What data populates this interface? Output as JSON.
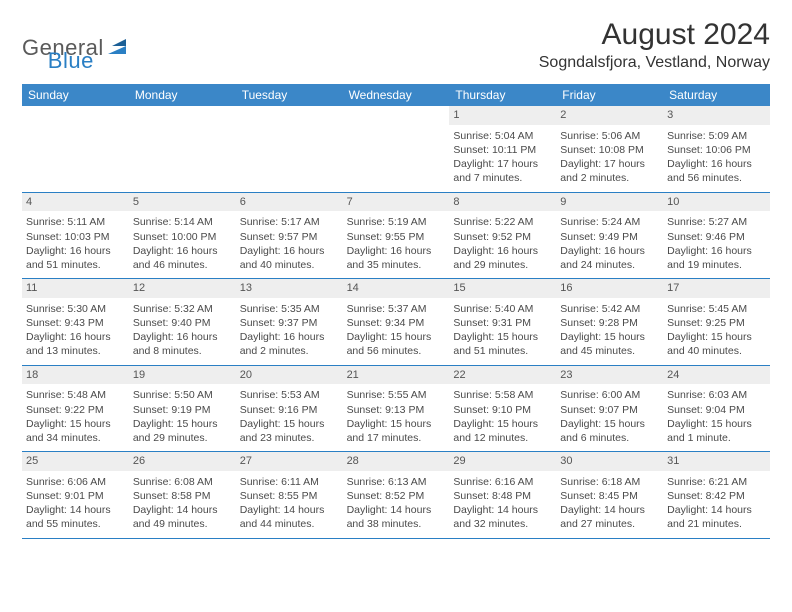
{
  "logo": {
    "general": "General",
    "blue": "Blue"
  },
  "title": "August 2024",
  "location": "Sogndalsfjora, Vestland, Norway",
  "weekdays": [
    "Sunday",
    "Monday",
    "Tuesday",
    "Wednesday",
    "Thursday",
    "Friday",
    "Saturday"
  ],
  "colors": {
    "header_bg": "#3b87c8",
    "header_text": "#ffffff",
    "daynum_bg": "#eeeeee",
    "row_border": "#2a7fc4",
    "body_text": "#4a4a4a",
    "logo_gray": "#5a5a5a",
    "logo_blue": "#2a7fc4"
  },
  "weeks": [
    [
      {
        "day": "",
        "sunrise": "",
        "sunset": "",
        "daylight": ""
      },
      {
        "day": "",
        "sunrise": "",
        "sunset": "",
        "daylight": ""
      },
      {
        "day": "",
        "sunrise": "",
        "sunset": "",
        "daylight": ""
      },
      {
        "day": "",
        "sunrise": "",
        "sunset": "",
        "daylight": ""
      },
      {
        "day": "1",
        "sunrise": "Sunrise: 5:04 AM",
        "sunset": "Sunset: 10:11 PM",
        "daylight": "Daylight: 17 hours and 7 minutes."
      },
      {
        "day": "2",
        "sunrise": "Sunrise: 5:06 AM",
        "sunset": "Sunset: 10:08 PM",
        "daylight": "Daylight: 17 hours and 2 minutes."
      },
      {
        "day": "3",
        "sunrise": "Sunrise: 5:09 AM",
        "sunset": "Sunset: 10:06 PM",
        "daylight": "Daylight: 16 hours and 56 minutes."
      }
    ],
    [
      {
        "day": "4",
        "sunrise": "Sunrise: 5:11 AM",
        "sunset": "Sunset: 10:03 PM",
        "daylight": "Daylight: 16 hours and 51 minutes."
      },
      {
        "day": "5",
        "sunrise": "Sunrise: 5:14 AM",
        "sunset": "Sunset: 10:00 PM",
        "daylight": "Daylight: 16 hours and 46 minutes."
      },
      {
        "day": "6",
        "sunrise": "Sunrise: 5:17 AM",
        "sunset": "Sunset: 9:57 PM",
        "daylight": "Daylight: 16 hours and 40 minutes."
      },
      {
        "day": "7",
        "sunrise": "Sunrise: 5:19 AM",
        "sunset": "Sunset: 9:55 PM",
        "daylight": "Daylight: 16 hours and 35 minutes."
      },
      {
        "day": "8",
        "sunrise": "Sunrise: 5:22 AM",
        "sunset": "Sunset: 9:52 PM",
        "daylight": "Daylight: 16 hours and 29 minutes."
      },
      {
        "day": "9",
        "sunrise": "Sunrise: 5:24 AM",
        "sunset": "Sunset: 9:49 PM",
        "daylight": "Daylight: 16 hours and 24 minutes."
      },
      {
        "day": "10",
        "sunrise": "Sunrise: 5:27 AM",
        "sunset": "Sunset: 9:46 PM",
        "daylight": "Daylight: 16 hours and 19 minutes."
      }
    ],
    [
      {
        "day": "11",
        "sunrise": "Sunrise: 5:30 AM",
        "sunset": "Sunset: 9:43 PM",
        "daylight": "Daylight: 16 hours and 13 minutes."
      },
      {
        "day": "12",
        "sunrise": "Sunrise: 5:32 AM",
        "sunset": "Sunset: 9:40 PM",
        "daylight": "Daylight: 16 hours and 8 minutes."
      },
      {
        "day": "13",
        "sunrise": "Sunrise: 5:35 AM",
        "sunset": "Sunset: 9:37 PM",
        "daylight": "Daylight: 16 hours and 2 minutes."
      },
      {
        "day": "14",
        "sunrise": "Sunrise: 5:37 AM",
        "sunset": "Sunset: 9:34 PM",
        "daylight": "Daylight: 15 hours and 56 minutes."
      },
      {
        "day": "15",
        "sunrise": "Sunrise: 5:40 AM",
        "sunset": "Sunset: 9:31 PM",
        "daylight": "Daylight: 15 hours and 51 minutes."
      },
      {
        "day": "16",
        "sunrise": "Sunrise: 5:42 AM",
        "sunset": "Sunset: 9:28 PM",
        "daylight": "Daylight: 15 hours and 45 minutes."
      },
      {
        "day": "17",
        "sunrise": "Sunrise: 5:45 AM",
        "sunset": "Sunset: 9:25 PM",
        "daylight": "Daylight: 15 hours and 40 minutes."
      }
    ],
    [
      {
        "day": "18",
        "sunrise": "Sunrise: 5:48 AM",
        "sunset": "Sunset: 9:22 PM",
        "daylight": "Daylight: 15 hours and 34 minutes."
      },
      {
        "day": "19",
        "sunrise": "Sunrise: 5:50 AM",
        "sunset": "Sunset: 9:19 PM",
        "daylight": "Daylight: 15 hours and 29 minutes."
      },
      {
        "day": "20",
        "sunrise": "Sunrise: 5:53 AM",
        "sunset": "Sunset: 9:16 PM",
        "daylight": "Daylight: 15 hours and 23 minutes."
      },
      {
        "day": "21",
        "sunrise": "Sunrise: 5:55 AM",
        "sunset": "Sunset: 9:13 PM",
        "daylight": "Daylight: 15 hours and 17 minutes."
      },
      {
        "day": "22",
        "sunrise": "Sunrise: 5:58 AM",
        "sunset": "Sunset: 9:10 PM",
        "daylight": "Daylight: 15 hours and 12 minutes."
      },
      {
        "day": "23",
        "sunrise": "Sunrise: 6:00 AM",
        "sunset": "Sunset: 9:07 PM",
        "daylight": "Daylight: 15 hours and 6 minutes."
      },
      {
        "day": "24",
        "sunrise": "Sunrise: 6:03 AM",
        "sunset": "Sunset: 9:04 PM",
        "daylight": "Daylight: 15 hours and 1 minute."
      }
    ],
    [
      {
        "day": "25",
        "sunrise": "Sunrise: 6:06 AM",
        "sunset": "Sunset: 9:01 PM",
        "daylight": "Daylight: 14 hours and 55 minutes."
      },
      {
        "day": "26",
        "sunrise": "Sunrise: 6:08 AM",
        "sunset": "Sunset: 8:58 PM",
        "daylight": "Daylight: 14 hours and 49 minutes."
      },
      {
        "day": "27",
        "sunrise": "Sunrise: 6:11 AM",
        "sunset": "Sunset: 8:55 PM",
        "daylight": "Daylight: 14 hours and 44 minutes."
      },
      {
        "day": "28",
        "sunrise": "Sunrise: 6:13 AM",
        "sunset": "Sunset: 8:52 PM",
        "daylight": "Daylight: 14 hours and 38 minutes."
      },
      {
        "day": "29",
        "sunrise": "Sunrise: 6:16 AM",
        "sunset": "Sunset: 8:48 PM",
        "daylight": "Daylight: 14 hours and 32 minutes."
      },
      {
        "day": "30",
        "sunrise": "Sunrise: 6:18 AM",
        "sunset": "Sunset: 8:45 PM",
        "daylight": "Daylight: 14 hours and 27 minutes."
      },
      {
        "day": "31",
        "sunrise": "Sunrise: 6:21 AM",
        "sunset": "Sunset: 8:42 PM",
        "daylight": "Daylight: 14 hours and 21 minutes."
      }
    ]
  ]
}
